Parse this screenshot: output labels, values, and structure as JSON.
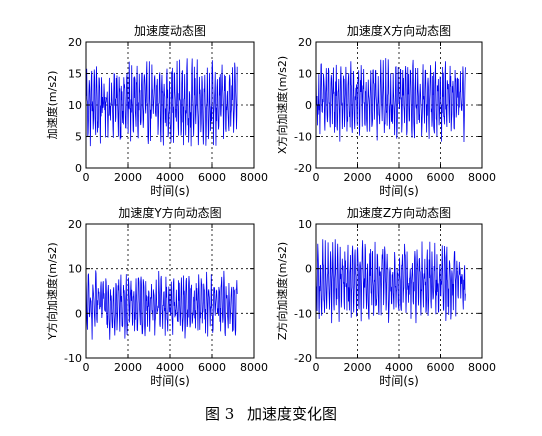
{
  "caption": {
    "figure_no": "图 3",
    "text": "加速度变化图"
  },
  "colors": {
    "line": "#0000ee",
    "axis": "#000000",
    "grid": "#000000",
    "background": "#ffffff"
  },
  "chart_data": [
    {
      "type": "line",
      "title": "加速度动态图",
      "xlabel": "时间(s)",
      "ylabel": "加速度(m/s2)",
      "xlim": [
        0,
        8000
      ],
      "ylim": [
        0,
        20
      ],
      "xticks": [
        0,
        2000,
        4000,
        6000,
        8000
      ],
      "yticks": [
        0,
        5,
        10,
        15,
        20
      ],
      "grid": true,
      "series": [
        {
          "x": [
            0,
            7200
          ],
          "values": [
            3,
            17.5
          ]
        }
      ]
    },
    {
      "type": "line",
      "title": "加速度X方向动态图",
      "xlabel": "时间(s)",
      "ylabel": "X方向加速度(m/s2)",
      "xlim": [
        0,
        8000
      ],
      "ylim": [
        -20,
        20
      ],
      "xticks": [
        0,
        2000,
        4000,
        6000,
        8000
      ],
      "yticks": [
        -20,
        -10,
        0,
        10,
        20
      ],
      "grid": true,
      "series": [
        {
          "x": [
            0,
            7200
          ],
          "values": [
            -12,
            15
          ]
        }
      ]
    },
    {
      "type": "line",
      "title": "加速度Y方向动态图",
      "xlabel": "时间(s)",
      "ylabel": "Y方向加速度(m/s2)",
      "xlim": [
        0,
        8000
      ],
      "ylim": [
        -10,
        20
      ],
      "xticks": [
        0,
        2000,
        4000,
        6000,
        8000
      ],
      "yticks": [
        -10,
        0,
        10,
        20
      ],
      "grid": true,
      "series": [
        {
          "x": [
            0,
            7200
          ],
          "values": [
            -6,
            10
          ]
        }
      ]
    },
    {
      "type": "line",
      "title": "加速度Z方向动态图",
      "xlabel": "时间(s)",
      "ylabel": "Z方向加速度(m/s2)",
      "xlim": [
        0,
        8000
      ],
      "ylim": [
        -20,
        10
      ],
      "xticks": [
        0,
        2000,
        4000,
        6000,
        8000
      ],
      "yticks": [
        -20,
        -10,
        0,
        10
      ],
      "grid": true,
      "series": [
        {
          "x": [
            0,
            7200
          ],
          "values": [
            -13,
            7
          ]
        }
      ]
    }
  ]
}
